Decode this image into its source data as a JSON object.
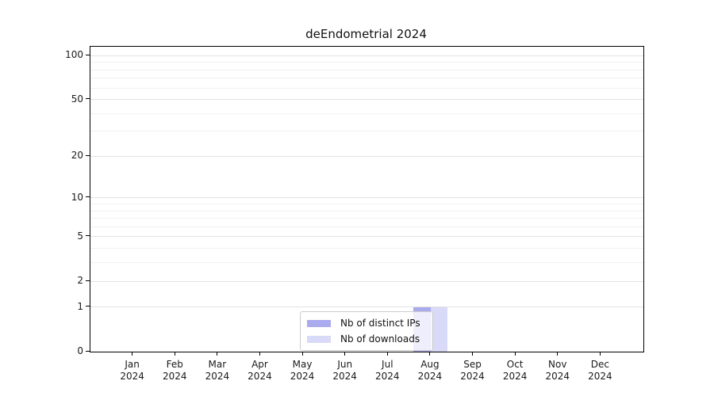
{
  "chart_data": {
    "type": "bar",
    "title": "deEndometrial 2024",
    "categories": [
      "Jan 2024",
      "Feb 2024",
      "Mar 2024",
      "Apr 2024",
      "May 2024",
      "Jun 2024",
      "Jul 2024",
      "Aug 2024",
      "Sep 2024",
      "Oct 2024",
      "Nov 2024",
      "Dec 2024"
    ],
    "series": [
      {
        "name": "Nb of distinct IPs",
        "color": "#aaaaee",
        "values": [
          0,
          0,
          0,
          0,
          0,
          0,
          0,
          1,
          0,
          0,
          0,
          0
        ]
      },
      {
        "name": "Nb of downloads",
        "color": "#d9d9f8",
        "values": [
          0,
          0,
          0,
          0,
          0,
          0,
          0,
          1,
          0,
          0,
          0,
          0
        ]
      }
    ],
    "yscale": "log1p",
    "ylim": [
      0,
      116
    ],
    "yticks": [
      0,
      1,
      2,
      5,
      10,
      20,
      50,
      100
    ],
    "yticks_minor": [
      3,
      4,
      6,
      7,
      8,
      9,
      30,
      40,
      60,
      70,
      80,
      90
    ],
    "grid": "horizontal-only",
    "legend_position": "bottom-center-inside"
  },
  "colors": {
    "major_grid": "#e2e2e2",
    "minor_grid": "#f1f1f1",
    "axis_line": "#000000",
    "tick_text": "#1a1a1a",
    "legend_border": "#cccccc"
  }
}
